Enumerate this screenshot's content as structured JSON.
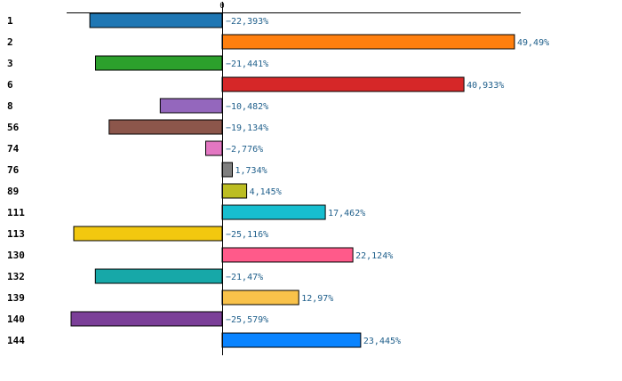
{
  "chart_data": {
    "type": "bar",
    "orientation": "horizontal",
    "categories": [
      "1",
      "2",
      "3",
      "6",
      "8",
      "56",
      "74",
      "76",
      "89",
      "111",
      "113",
      "130",
      "132",
      "139",
      "140",
      "144"
    ],
    "values": [
      -22.393,
      49.49,
      -21.441,
      40.933,
      -10.482,
      -19.134,
      -2.776,
      1.734,
      4.145,
      17.462,
      -25.116,
      22.124,
      -21.47,
      12.97,
      -25.579,
      23.445
    ],
    "value_labels": [
      "−22,393%",
      "49,49%",
      "−21,441%",
      "40,933%",
      "−10,482%",
      "−19,134%",
      "−2,776%",
      "1,734%",
      "4,145%",
      "17,462%",
      "−25,116%",
      "22,124%",
      "−21,47%",
      "12,97%",
      "−25,579%",
      "23,445%"
    ],
    "colors": [
      "#1f77b4",
      "#ff7f0e",
      "#2ca02c",
      "#d62728",
      "#9467bd",
      "#8c564b",
      "#e377c2",
      "#7f7f7f",
      "#bcbd22",
      "#17becf",
      "#f2c80f",
      "#ff5a8a",
      "#17a8a8",
      "#f9c24a",
      "#7b3f98",
      "#0a84ff"
    ],
    "zero_label": "0",
    "xlim": [
      -26.5,
      50.5
    ],
    "title": "",
    "xlabel": "",
    "ylabel": ""
  }
}
